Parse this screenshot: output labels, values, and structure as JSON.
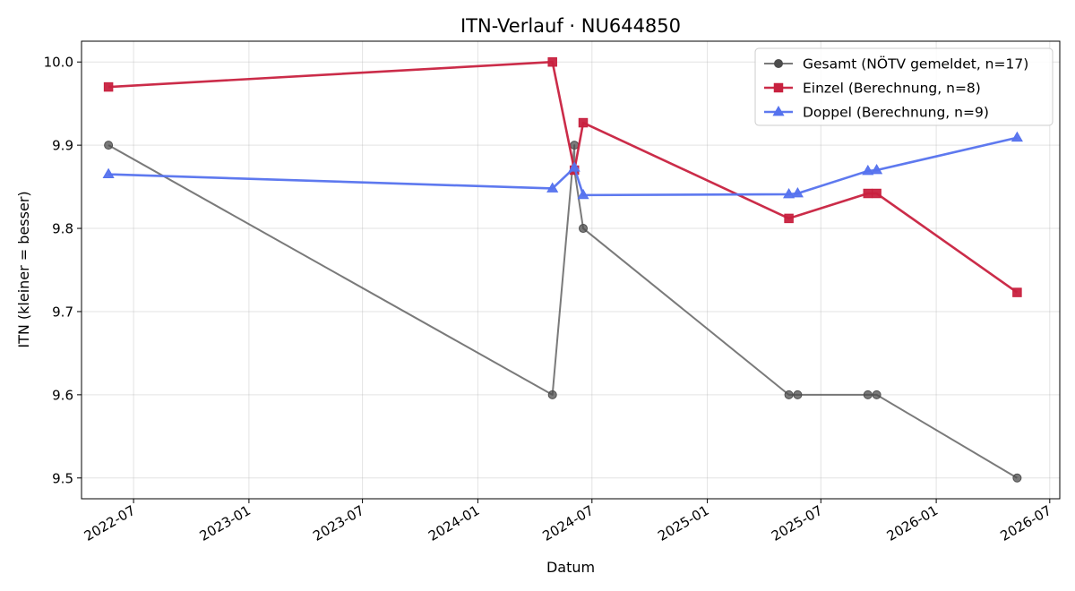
{
  "chart_data": {
    "type": "line",
    "title": "ITN-Verlauf · NU644850",
    "xlabel": "Datum",
    "ylabel": "ITN  (kleiner = besser)",
    "x_axis_type": "date",
    "xlim": [
      "2022-04-09",
      "2026-07-17"
    ],
    "ylim": [
      9.475,
      10.025
    ],
    "y_ticks": [
      9.5,
      9.6,
      9.7,
      9.8,
      9.9,
      10.0
    ],
    "y_tick_labels": [
      "9.5",
      "9.6",
      "9.7",
      "9.8",
      "9.9",
      "10.0"
    ],
    "x_ticks": [
      "2022-07-01",
      "2023-01-01",
      "2023-07-01",
      "2024-01-01",
      "2024-07-01",
      "2025-01-01",
      "2025-07-01",
      "2026-01-01",
      "2026-07-01"
    ],
    "x_tick_labels": [
      "2022-07",
      "2023-01",
      "2023-07",
      "2024-01",
      "2024-07",
      "2025-01",
      "2025-07",
      "2026-01",
      "2026-07"
    ],
    "grid": true,
    "legend_position": "top-right",
    "series": [
      {
        "name": "Gesamt (NÖTV gemeldet, n=17)",
        "color": "#4d4d4d",
        "marker": "circle",
        "points": [
          {
            "x": "2022-05-22",
            "y": 9.9
          },
          {
            "x": "2024-04-29",
            "y": 9.6
          },
          {
            "x": "2024-06-03",
            "y": 9.9
          },
          {
            "x": "2024-06-03",
            "y": 9.87
          },
          {
            "x": "2024-06-17",
            "y": 9.8
          },
          {
            "x": "2025-05-11",
            "y": 9.6
          },
          {
            "x": "2025-05-25",
            "y": 9.6
          },
          {
            "x": "2025-09-14",
            "y": 9.6
          },
          {
            "x": "2025-09-28",
            "y": 9.6
          },
          {
            "x": "2026-05-10",
            "y": 9.5
          }
        ]
      },
      {
        "name": "Einzel (Berechnung, n=8)",
        "color": "#c8213f",
        "marker": "square",
        "points": [
          {
            "x": "2022-05-22",
            "y": 9.97
          },
          {
            "x": "2024-04-29",
            "y": 10.0
          },
          {
            "x": "2024-06-03",
            "y": 9.87
          },
          {
            "x": "2024-06-17",
            "y": 9.927
          },
          {
            "x": "2025-05-11",
            "y": 9.812
          },
          {
            "x": "2025-09-14",
            "y": 9.842
          },
          {
            "x": "2025-09-28",
            "y": 9.842
          },
          {
            "x": "2026-05-10",
            "y": 9.723
          }
        ]
      },
      {
        "name": "Doppel (Berechnung, n=9)",
        "color": "#5572ee",
        "marker": "triangle",
        "points": [
          {
            "x": "2022-05-22",
            "y": 9.865
          },
          {
            "x": "2024-04-29",
            "y": 9.848
          },
          {
            "x": "2024-06-03",
            "y": 9.873
          },
          {
            "x": "2024-06-17",
            "y": 9.84
          },
          {
            "x": "2025-05-11",
            "y": 9.841
          },
          {
            "x": "2025-05-25",
            "y": 9.842
          },
          {
            "x": "2025-09-14",
            "y": 9.869
          },
          {
            "x": "2025-09-28",
            "y": 9.87
          },
          {
            "x": "2026-05-10",
            "y": 9.909
          }
        ]
      }
    ]
  }
}
